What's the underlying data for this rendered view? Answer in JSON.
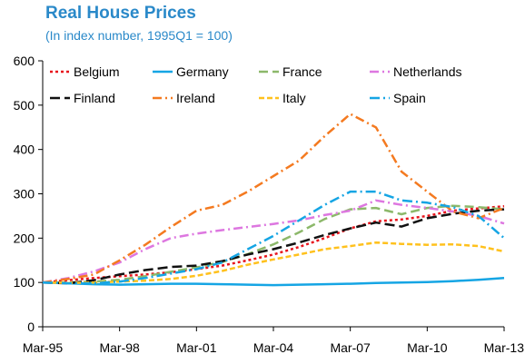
{
  "chart_data": {
    "type": "line",
    "title": "Real House Prices",
    "subtitle": "(In index number, 1995Q1 = 100)",
    "xlabel": "",
    "ylabel": "",
    "x": [
      1995,
      1996,
      1997,
      1998,
      1999,
      2000,
      2001,
      2002,
      2003,
      2004,
      2005,
      2006,
      2007,
      2008,
      2009,
      2010,
      2011,
      2012,
      2013
    ],
    "x_tick_labels": [
      "Mar-95",
      "Mar-98",
      "Mar-01",
      "Mar-04",
      "Mar-07",
      "Mar-10",
      "Mar-13"
    ],
    "x_tick_values": [
      1995,
      1998,
      2001,
      2004,
      2007,
      2010,
      2013
    ],
    "xlim": [
      1995,
      2013
    ],
    "ylim": [
      0,
      600
    ],
    "y_ticks": [
      0,
      100,
      200,
      300,
      400,
      500,
      600
    ],
    "grid": false,
    "legend_position": "top",
    "series": [
      {
        "name": "Belgium",
        "color": "#e8141c",
        "dash": "3,3",
        "values": [
          100,
          105,
          110,
          114,
          118,
          123,
          130,
          138,
          150,
          163,
          180,
          200,
          222,
          238,
          242,
          250,
          262,
          267,
          272
        ]
      },
      {
        "name": "Germany",
        "color": "#15a5e4",
        "dash": "",
        "values": [
          100,
          98,
          96,
          95,
          96,
          97,
          97,
          96,
          95,
          94,
          95,
          96,
          97,
          99,
          100,
          101,
          103,
          106,
          110
        ]
      },
      {
        "name": "France",
        "color": "#8cb86a",
        "dash": "10,5",
        "values": [
          100,
          100,
          102,
          106,
          114,
          124,
          134,
          146,
          164,
          186,
          213,
          243,
          265,
          268,
          254,
          268,
          273,
          270,
          265
        ]
      },
      {
        "name": "Netherlands",
        "color": "#dd77e0",
        "dash": "10,4,2,4",
        "values": [
          100,
          110,
          125,
          145,
          175,
          200,
          210,
          218,
          225,
          232,
          240,
          252,
          262,
          285,
          275,
          268,
          260,
          250,
          233
        ]
      },
      {
        "name": "Finland",
        "color": "#111111",
        "dash": "11,5",
        "values": [
          100,
          98,
          105,
          118,
          128,
          135,
          138,
          148,
          163,
          175,
          190,
          207,
          222,
          235,
          226,
          245,
          255,
          262,
          265
        ]
      },
      {
        "name": "Ireland",
        "color": "#f47a20",
        "dash": "10,4,2,4",
        "values": [
          100,
          108,
          118,
          150,
          185,
          225,
          262,
          275,
          305,
          340,
          375,
          430,
          480,
          450,
          350,
          305,
          260,
          245,
          268
        ]
      },
      {
        "name": "Italy",
        "color": "#ffc11d",
        "dash": "6,3",
        "values": [
          100,
          99,
          100,
          102,
          104,
          108,
          115,
          126,
          140,
          152,
          163,
          175,
          182,
          190,
          187,
          185,
          186,
          182,
          170
        ]
      },
      {
        "name": "Spain",
        "color": "#15a5e4",
        "dash": "11,4,2,4",
        "values": [
          100,
          98,
          98,
          102,
          110,
          120,
          130,
          145,
          175,
          205,
          240,
          275,
          305,
          305,
          285,
          280,
          270,
          250,
          200
        ]
      }
    ]
  }
}
